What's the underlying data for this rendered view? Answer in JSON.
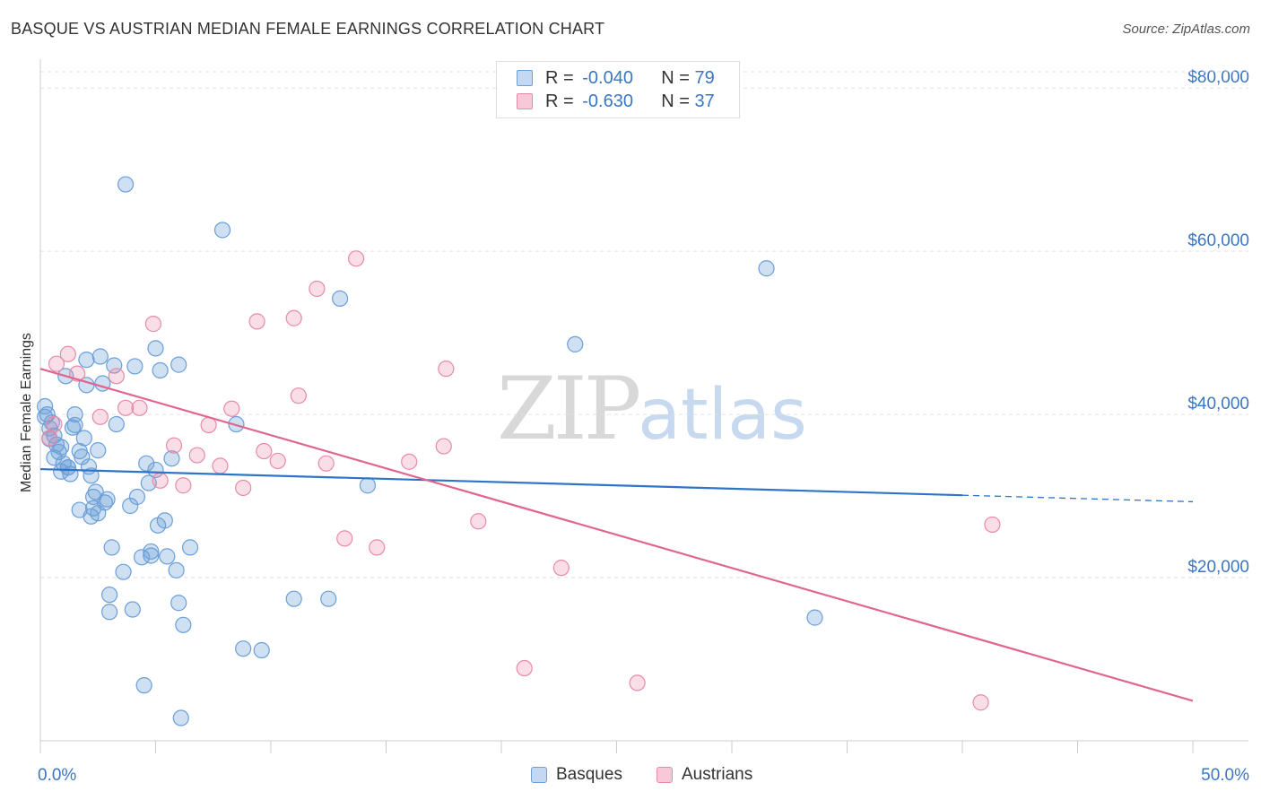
{
  "title": "BASQUE VS AUSTRIAN MEDIAN FEMALE EARNINGS CORRELATION CHART",
  "source": "Source: ZipAtlas.com",
  "watermark": {
    "zip": "ZIP",
    "atlas": "atlas"
  },
  "colors": {
    "basques": "#6a9fd8",
    "austrians": "#e98aa8",
    "basques_line": "#2f74c8",
    "austrians_line": "#e0668f",
    "axis_text": "#3a76c4"
  },
  "legend": {
    "row1": {
      "r_label": "R = ",
      "r_value": "-0.040",
      "n_label": "N = ",
      "n_value": "79"
    },
    "row2": {
      "r_label": "R = ",
      "r_value": "-0.630",
      "n_label": "N = ",
      "n_value": "37"
    }
  },
  "bottom_legend": {
    "basques": "Basques",
    "austrians": "Austrians"
  },
  "chart_data": {
    "type": "scatter",
    "title": "BASQUE VS AUSTRIAN MEDIAN FEMALE EARNINGS CORRELATION CHART",
    "xlabel": "",
    "ylabel": "Median Female Earnings",
    "x_tick_labels": {
      "left": "0.0%",
      "right": "50.0%"
    },
    "y_tick_labels": [
      "$20,000",
      "$40,000",
      "$60,000",
      "$80,000"
    ],
    "y_ticks": [
      20000,
      40000,
      60000,
      80000
    ],
    "xlim": [
      0,
      50
    ],
    "ylim": [
      0,
      82000
    ],
    "grid": true,
    "legend_placement": "top-center",
    "series": [
      {
        "name": "Basques",
        "color": "#6a9fd8",
        "r": -0.04,
        "n": 79,
        "trend": {
          "x": [
            0,
            40
          ],
          "y": [
            33300,
            30100
          ],
          "dashed_to": [
            50,
            29300
          ]
        },
        "points": [
          [
            0.2,
            41000
          ],
          [
            0.2,
            39700
          ],
          [
            0.3,
            40000
          ],
          [
            0.4,
            38300
          ],
          [
            0.4,
            37000
          ],
          [
            0.5,
            39000
          ],
          [
            0.6,
            34700
          ],
          [
            0.7,
            36300
          ],
          [
            0.8,
            35400
          ],
          [
            0.9,
            36000
          ],
          [
            0.9,
            33000
          ],
          [
            1.0,
            34000
          ],
          [
            1.1,
            44700
          ],
          [
            1.2,
            33500
          ],
          [
            1.3,
            32700
          ],
          [
            1.4,
            38400
          ],
          [
            1.5,
            38700
          ],
          [
            1.5,
            40000
          ],
          [
            1.7,
            28300
          ],
          [
            1.7,
            35500
          ],
          [
            1.8,
            34800
          ],
          [
            1.9,
            37100
          ],
          [
            2.0,
            46700
          ],
          [
            2.0,
            43600
          ],
          [
            2.1,
            33600
          ],
          [
            2.2,
            32500
          ],
          [
            2.2,
            27500
          ],
          [
            2.3,
            28500
          ],
          [
            2.3,
            29900
          ],
          [
            2.4,
            30500
          ],
          [
            2.5,
            35600
          ],
          [
            2.6,
            47100
          ],
          [
            2.7,
            43800
          ],
          [
            2.8,
            29200
          ],
          [
            2.9,
            29600
          ],
          [
            3.0,
            17900
          ],
          [
            3.1,
            23700
          ],
          [
            3.2,
            46000
          ],
          [
            3.3,
            38800
          ],
          [
            3.6,
            20700
          ],
          [
            3.7,
            68200
          ],
          [
            3.9,
            28800
          ],
          [
            4.0,
            16100
          ],
          [
            4.1,
            45900
          ],
          [
            4.2,
            29900
          ],
          [
            4.5,
            6800
          ],
          [
            4.6,
            34000
          ],
          [
            4.7,
            31600
          ],
          [
            4.8,
            22700
          ],
          [
            4.8,
            23200
          ],
          [
            5.0,
            33200
          ],
          [
            5.0,
            48100
          ],
          [
            5.1,
            26400
          ],
          [
            5.2,
            45400
          ],
          [
            5.4,
            27000
          ],
          [
            5.5,
            22600
          ],
          [
            5.7,
            34600
          ],
          [
            5.9,
            20900
          ],
          [
            6.0,
            16900
          ],
          [
            6.0,
            46100
          ],
          [
            6.1,
            2800
          ],
          [
            6.2,
            14200
          ],
          [
            6.5,
            23700
          ],
          [
            7.9,
            62600
          ],
          [
            8.5,
            38800
          ],
          [
            8.8,
            11300
          ],
          [
            9.6,
            11100
          ],
          [
            11.0,
            17400
          ],
          [
            12.5,
            17400
          ],
          [
            13.0,
            54200
          ],
          [
            14.2,
            31300
          ],
          [
            23.2,
            48600
          ],
          [
            31.5,
            57900
          ],
          [
            33.6,
            15100
          ],
          [
            3.0,
            15800
          ],
          [
            1.2,
            33500
          ],
          [
            0.6,
            37400
          ],
          [
            2.5,
            27900
          ],
          [
            4.4,
            22500
          ]
        ]
      },
      {
        "name": "Austrians",
        "color": "#e98aa8",
        "r": -0.63,
        "n": 37,
        "trend": {
          "x": [
            0,
            50
          ],
          "y": [
            45600,
            4900
          ]
        },
        "points": [
          [
            0.4,
            37100
          ],
          [
            0.6,
            38800
          ],
          [
            0.7,
            46200
          ],
          [
            1.2,
            47400
          ],
          [
            1.6,
            45000
          ],
          [
            2.6,
            39700
          ],
          [
            3.3,
            44700
          ],
          [
            3.7,
            40800
          ],
          [
            4.3,
            40800
          ],
          [
            4.9,
            51100
          ],
          [
            5.2,
            31900
          ],
          [
            5.8,
            36200
          ],
          [
            6.2,
            31300
          ],
          [
            6.8,
            35000
          ],
          [
            7.3,
            38700
          ],
          [
            7.8,
            33700
          ],
          [
            8.3,
            40700
          ],
          [
            8.8,
            31000
          ],
          [
            9.4,
            51400
          ],
          [
            9.7,
            35500
          ],
          [
            10.3,
            34300
          ],
          [
            11.0,
            51800
          ],
          [
            11.2,
            42300
          ],
          [
            12.0,
            55400
          ],
          [
            12.4,
            34000
          ],
          [
            13.2,
            24800
          ],
          [
            13.7,
            59100
          ],
          [
            14.6,
            23700
          ],
          [
            16.0,
            34200
          ],
          [
            17.5,
            36100
          ],
          [
            17.6,
            45600
          ],
          [
            19.0,
            26900
          ],
          [
            22.6,
            21200
          ],
          [
            21.0,
            8900
          ],
          [
            25.9,
            7100
          ],
          [
            40.8,
            4700
          ],
          [
            41.3,
            26500
          ]
        ]
      }
    ]
  }
}
